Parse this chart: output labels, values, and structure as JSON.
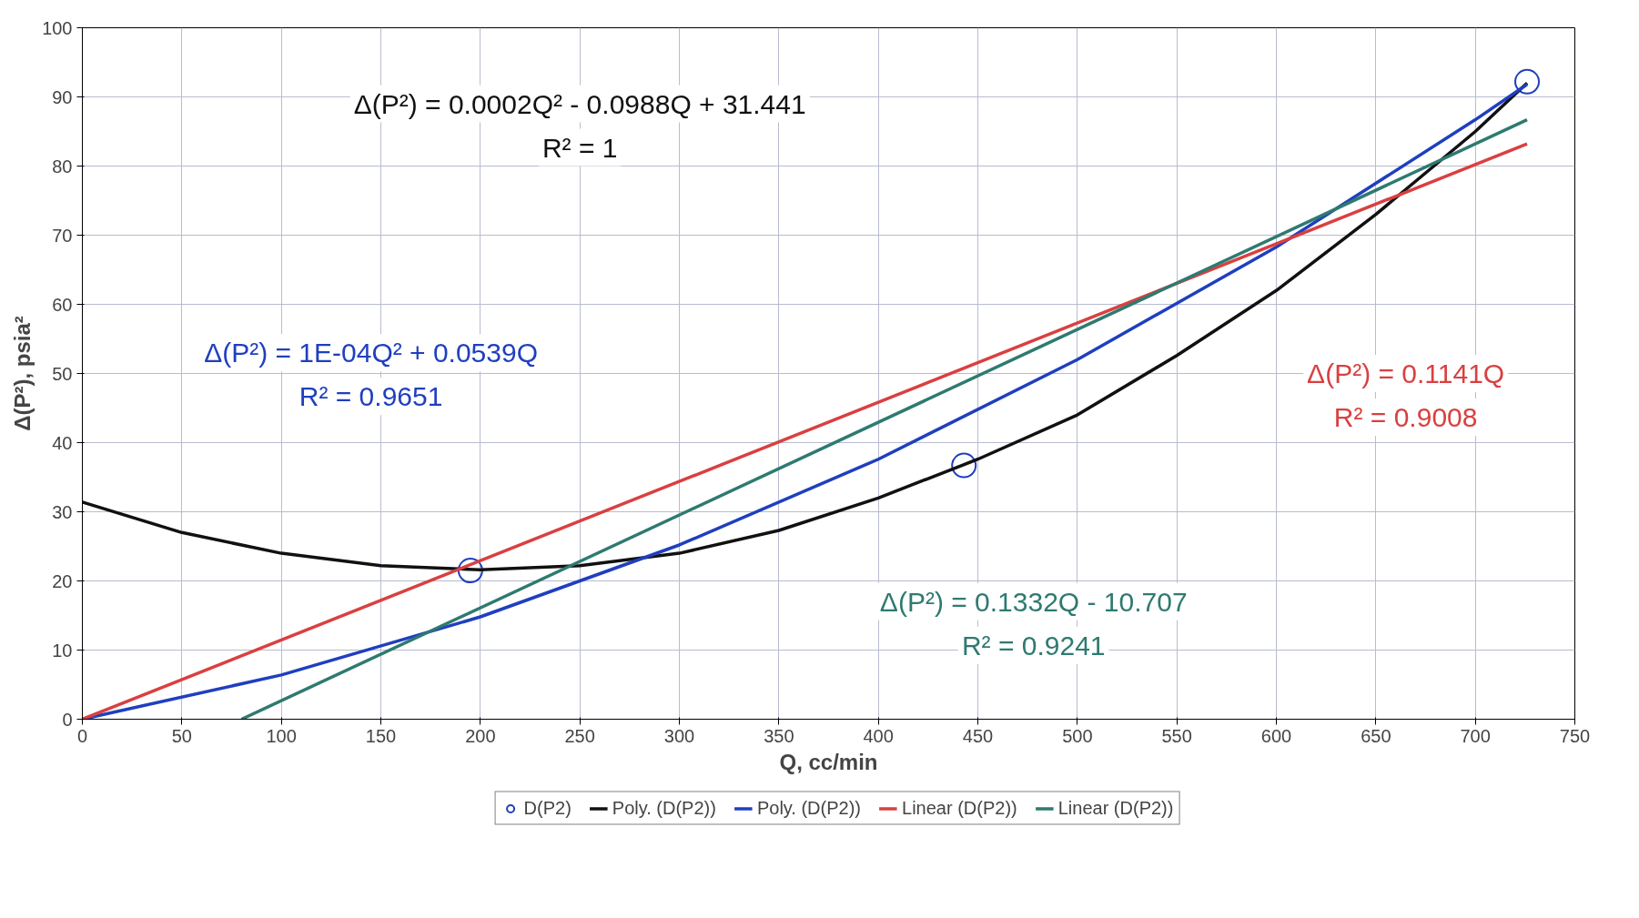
{
  "chart_data": {
    "type": "scatter",
    "xlabel": "Q, cc/min",
    "ylabel": "Δ(P²), psia²",
    "xlim": [
      0,
      750
    ],
    "xticks": [
      0,
      50,
      100,
      150,
      200,
      250,
      300,
      350,
      400,
      450,
      500,
      550,
      600,
      650,
      700,
      750
    ],
    "ylim": [
      0,
      100
    ],
    "yticks": [
      0,
      10,
      20,
      30,
      40,
      50,
      60,
      70,
      80,
      90,
      100
    ],
    "grid": true,
    "legend": "bottom",
    "series": [
      {
        "name": "D(P2)",
        "color": "#1f3fbf",
        "marker": "circle",
        "x": [
          195,
          443,
          726
        ],
        "values": [
          21.5,
          36.7,
          92.2
        ]
      },
      {
        "name": "Poly. (D(P2))",
        "type": "line",
        "color": "#111111",
        "x": [
          0,
          50,
          100,
          150,
          200,
          250,
          300,
          350,
          400,
          450,
          500,
          550,
          600,
          650,
          700,
          726
        ],
        "values": [
          31.4,
          27.0,
          24.0,
          22.2,
          21.6,
          22.2,
          24.0,
          27.3,
          32.0,
          37.6,
          44.0,
          52.6,
          62.0,
          73.0,
          85.0,
          92.0
        ]
      },
      {
        "name": "Poly. (D(P2))",
        "type": "line",
        "color": "#1f3fbf",
        "x": [
          0,
          100,
          200,
          300,
          400,
          500,
          600,
          700,
          726
        ],
        "values": [
          0,
          6.4,
          14.8,
          25.2,
          37.6,
          52.0,
          68.3,
          86.7,
          91.8
        ]
      },
      {
        "name": "Linear (D(P2))",
        "type": "line",
        "color": "#d94040",
        "x": [
          0,
          726
        ],
        "values": [
          0,
          83.2
        ]
      },
      {
        "name": "Linear (D(P2))",
        "type": "line",
        "color": "#2e7a70",
        "x": [
          80,
          726
        ],
        "values": [
          0,
          86.7
        ]
      }
    ],
    "annotations": [
      "Δ(P²) = 0.0002Q² - 0.0988Q + 31.441\nR² = 1",
      "Δ(P²) = 1E-04Q² + 0.0539Q\nR² = 0.9651",
      "Δ(P²) = 0.1141Q\nR² = 0.9008",
      "Δ(P²) = 0.1332Q - 10.707\nR² = 0.9241"
    ]
  }
}
